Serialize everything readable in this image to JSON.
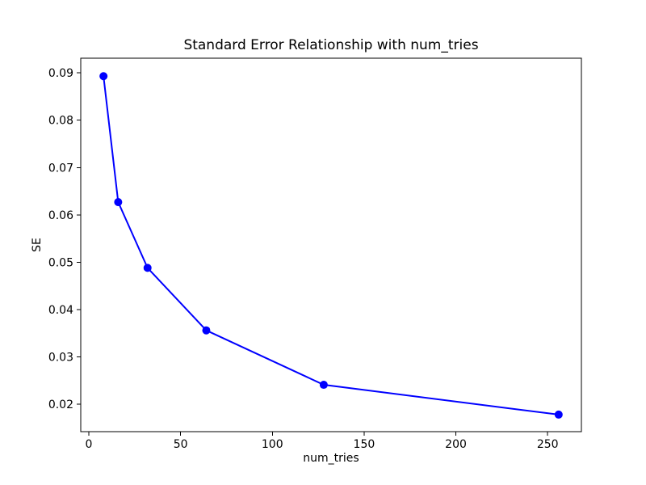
{
  "chart_data": {
    "type": "line",
    "title": "Standard Error Relationship with num_tries",
    "xlabel": "num_tries",
    "ylabel": "SE",
    "x": [
      8,
      16,
      32,
      64,
      128,
      256
    ],
    "series": [
      {
        "name": "SE",
        "values": [
          0.0893,
          0.0627,
          0.0488,
          0.0356,
          0.0241,
          0.0178
        ],
        "color": "#0000ff",
        "marker": "circle"
      }
    ],
    "xlim": [
      -4.4,
      268.4
    ],
    "ylim": [
      0.0142,
      0.0931
    ],
    "xticks": [
      0,
      50,
      100,
      150,
      200,
      250
    ],
    "xtick_labels": [
      "0",
      "50",
      "100",
      "150",
      "200",
      "250"
    ],
    "yticks": [
      0.02,
      0.03,
      0.04,
      0.05,
      0.06,
      0.07,
      0.08,
      0.09
    ],
    "ytick_labels": [
      "0.02",
      "0.03",
      "0.04",
      "0.05",
      "0.06",
      "0.07",
      "0.08",
      "0.09"
    ],
    "grid": false,
    "legend": null,
    "background_color": "#ffffff",
    "axis_color": "#000000",
    "text_color": "#000000"
  }
}
